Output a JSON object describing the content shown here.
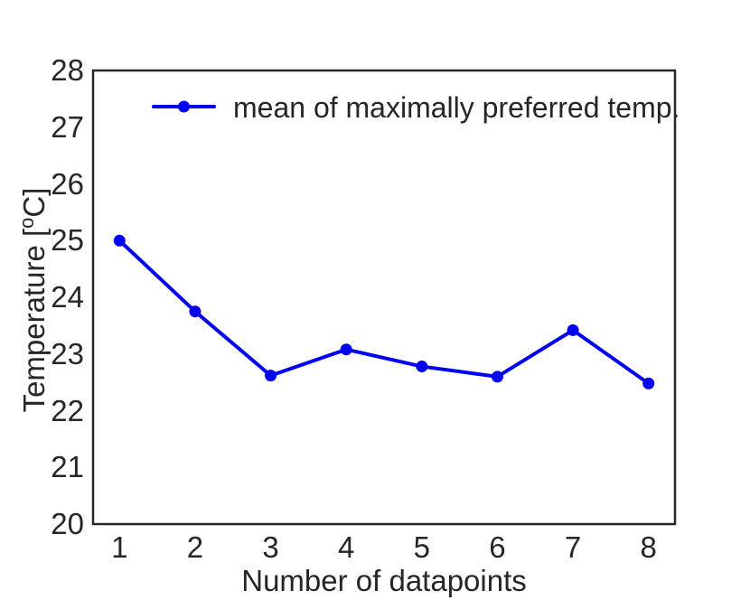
{
  "chart_data": {
    "type": "line",
    "title": "",
    "xlabel": "Number of datapoints",
    "ylabel": "Temperature [°C]",
    "ylabel_parts": {
      "prefix": "Temperature [",
      "sup": "o",
      "suffix": "C]"
    },
    "x": [
      1,
      2,
      3,
      4,
      5,
      6,
      7,
      8
    ],
    "x_tick_labels": [
      "1",
      "2",
      "3",
      "4",
      "5",
      "6",
      "7",
      "8"
    ],
    "y_ticks": [
      20,
      21,
      22,
      23,
      24,
      25,
      26,
      27,
      28
    ],
    "y_tick_labels": [
      "20",
      "21",
      "22",
      "23",
      "24",
      "25",
      "26",
      "27",
      "28"
    ],
    "xlim": [
      0.65,
      8.35
    ],
    "ylim": [
      20,
      28
    ],
    "grid": false,
    "legend_position": "upper left inside",
    "series": [
      {
        "name": "mean of maximally preferred temp.",
        "values": [
          25.0,
          23.75,
          22.62,
          23.08,
          22.78,
          22.6,
          23.42,
          22.48
        ],
        "color": "#0202f0",
        "marker": "circle",
        "line_width": 4,
        "marker_radius": 6.5
      }
    ],
    "colors": {
      "line_blue": "#0202f0",
      "axis_and_text": "#262626",
      "background": "#ffffff"
    }
  }
}
